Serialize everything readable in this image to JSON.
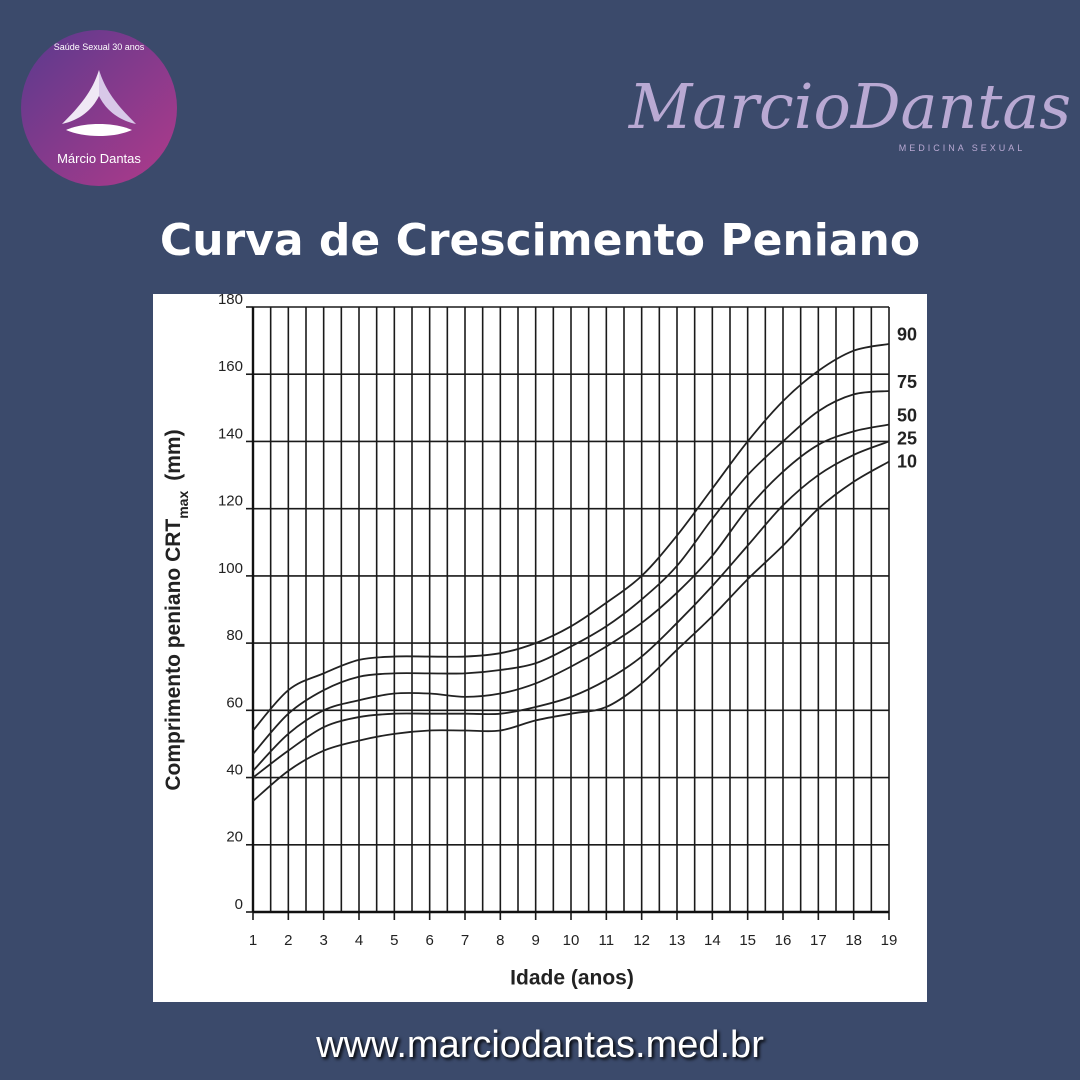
{
  "logo": {
    "caption": "Saúde Sexual 30 anos",
    "name": "Márcio Dantas"
  },
  "brand": {
    "name": "MarcioDantas",
    "subtitle": "MEDICINA SEXUAL"
  },
  "chart_data": {
    "type": "line",
    "title": "Curva de Crescimento Peniano",
    "xlabel": "Idade (anos)",
    "ylabel": "Comprimento peniano CRT",
    "ylabel_sub": "max",
    "ylabel_unit": "(mm)",
    "x": [
      1,
      2,
      3,
      4,
      5,
      6,
      7,
      8,
      9,
      10,
      11,
      12,
      13,
      14,
      15,
      16,
      17,
      18,
      19
    ],
    "xlim": [
      1,
      19
    ],
    "xticks": [
      1,
      2,
      3,
      4,
      5,
      6,
      7,
      8,
      9,
      10,
      11,
      12,
      13,
      14,
      15,
      16,
      17,
      18,
      19
    ],
    "ylim": [
      0,
      180
    ],
    "yticks": [
      0,
      20,
      40,
      60,
      80,
      100,
      120,
      140,
      160,
      180
    ],
    "grid": true,
    "series": [
      {
        "name": "90",
        "color": "#222222",
        "values": [
          54,
          66,
          71,
          75,
          76,
          76,
          76,
          77,
          80,
          85,
          92,
          100,
          112,
          126,
          140,
          152,
          161,
          167,
          169
        ]
      },
      {
        "name": "75",
        "color": "#222222",
        "values": [
          47,
          59,
          66,
          70,
          71,
          71,
          71,
          72,
          74,
          79,
          85,
          93,
          103,
          117,
          130,
          140,
          149,
          154,
          155
        ]
      },
      {
        "name": "50",
        "color": "#222222",
        "values": [
          42,
          53,
          60,
          63,
          65,
          65,
          64,
          65,
          68,
          73,
          79,
          86,
          95,
          106,
          120,
          131,
          139,
          143,
          145
        ]
      },
      {
        "name": "25",
        "color": "#222222",
        "values": [
          40,
          48,
          55,
          58,
          59,
          59,
          59,
          59,
          61,
          64,
          69,
          76,
          86,
          97,
          109,
          121,
          130,
          136,
          140
        ]
      },
      {
        "name": "10",
        "color": "#222222",
        "values": [
          33,
          42,
          48,
          51,
          53,
          54,
          54,
          54,
          57,
          59,
          61,
          68,
          78,
          88,
          99,
          109,
          120,
          128,
          134
        ]
      }
    ]
  },
  "footer": {
    "url": "www.marciodantas.med.br"
  }
}
